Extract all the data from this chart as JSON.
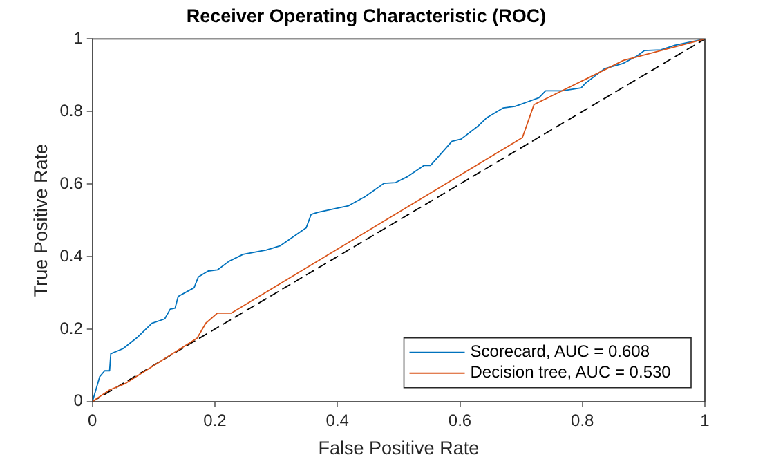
{
  "chart_data": {
    "type": "line",
    "title": "Receiver Operating Characteristic (ROC)",
    "xlabel": "False Positive Rate",
    "ylabel": "True Positive Rate",
    "xlim": [
      0,
      1
    ],
    "ylim": [
      0,
      1
    ],
    "xticks": [
      0,
      0.2,
      0.4,
      0.6,
      0.8,
      1
    ],
    "yticks": [
      0,
      0.2,
      0.4,
      0.6,
      0.8,
      1
    ],
    "grid": false,
    "legend": "bottom right",
    "series": [
      {
        "name": "Scorecard, AUC = 0.608",
        "color": "#0072bd",
        "x": [
          0,
          0.012,
          0.02,
          0.028,
          0.03,
          0.05,
          0.074,
          0.097,
          0.118,
          0.127,
          0.135,
          0.14,
          0.166,
          0.173,
          0.189,
          0.204,
          0.223,
          0.246,
          0.284,
          0.307,
          0.349,
          0.357,
          0.368,
          0.418,
          0.445,
          0.476,
          0.495,
          0.514,
          0.541,
          0.552,
          0.587,
          0.602,
          0.629,
          0.644,
          0.671,
          0.69,
          0.729,
          0.74,
          0.767,
          0.798,
          0.805,
          0.836,
          0.867,
          0.89,
          0.901,
          0.928,
          0.951,
          1
        ],
        "values": [
          0,
          0.069,
          0.085,
          0.085,
          0.132,
          0.146,
          0.178,
          0.216,
          0.228,
          0.255,
          0.258,
          0.29,
          0.314,
          0.344,
          0.36,
          0.363,
          0.387,
          0.406,
          0.418,
          0.43,
          0.479,
          0.516,
          0.522,
          0.54,
          0.565,
          0.602,
          0.604,
          0.62,
          0.651,
          0.651,
          0.718,
          0.724,
          0.759,
          0.783,
          0.81,
          0.814,
          0.838,
          0.857,
          0.857,
          0.865,
          0.878,
          0.918,
          0.933,
          0.954,
          0.968,
          0.97,
          0.983,
          1
        ]
      },
      {
        "name": "Decision tree, AUC = 0.530",
        "color": "#d95319",
        "x": [
          0,
          0.028,
          0.054,
          0.171,
          0.185,
          0.204,
          0.227,
          0.702,
          0.721,
          0.828,
          0.867,
          1
        ],
        "values": [
          0,
          0.032,
          0.05,
          0.175,
          0.216,
          0.244,
          0.244,
          0.728,
          0.819,
          0.908,
          0.941,
          1
        ]
      },
      {
        "color": "#000000",
        "line_style": "dashed",
        "x": [
          0,
          1
        ],
        "values": [
          0,
          1
        ]
      }
    ]
  }
}
